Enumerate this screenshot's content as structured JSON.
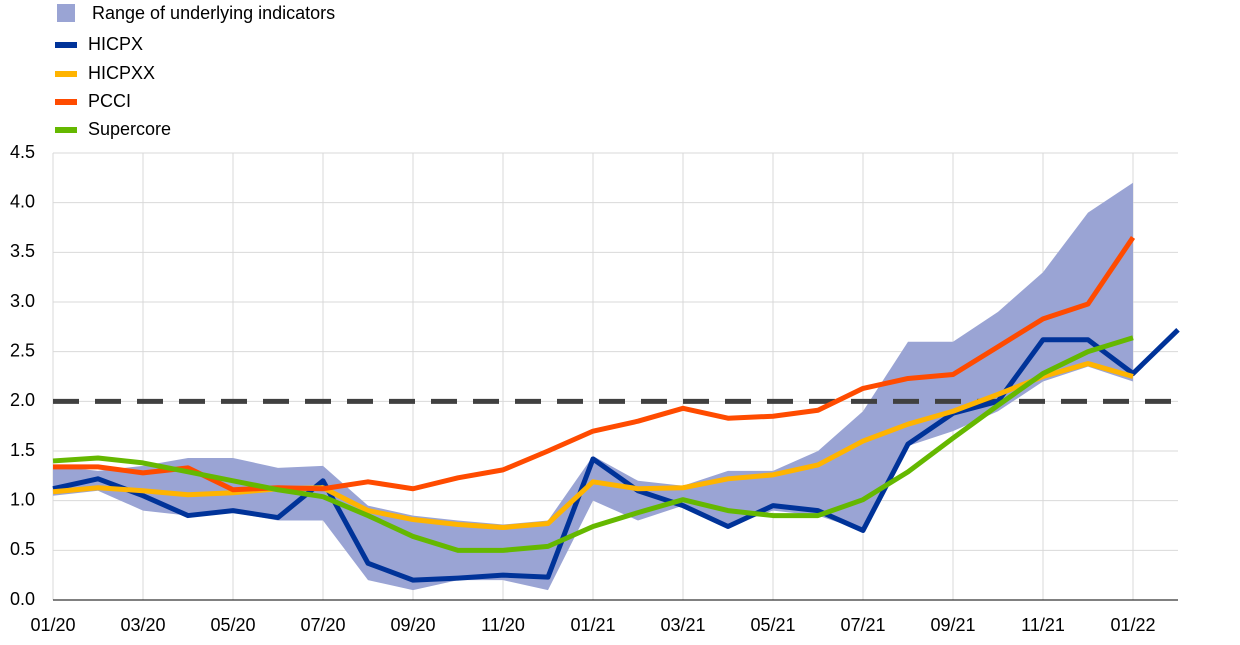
{
  "chart_data": {
    "type": "line",
    "categories": [
      "01/20",
      null,
      "03/20",
      null,
      "05/20",
      null,
      "07/20",
      null,
      "09/20",
      null,
      "11/20",
      null,
      "01/21",
      null,
      "03/21",
      null,
      "05/21",
      null,
      "07/21",
      null,
      "09/21",
      null,
      "11/21",
      null,
      "01/22",
      null
    ],
    "range": {
      "name": "Range of underlying indicators",
      "color": "#9aa4d4",
      "high": [
        1.35,
        1.3,
        1.35,
        1.43,
        1.43,
        1.33,
        1.35,
        0.95,
        0.85,
        0.8,
        0.76,
        0.8,
        1.45,
        1.2,
        1.15,
        1.3,
        1.3,
        1.5,
        1.9,
        2.6,
        2.6,
        2.9,
        3.3,
        3.9,
        4.2,
        null
      ],
      "low": [
        1.05,
        1.1,
        0.9,
        0.85,
        0.88,
        0.8,
        0.8,
        0.2,
        0.1,
        0.2,
        0.2,
        0.1,
        1.0,
        0.8,
        0.95,
        0.74,
        0.9,
        0.85,
        0.7,
        1.55,
        1.7,
        1.9,
        2.2,
        2.35,
        2.2,
        null
      ]
    },
    "series": [
      {
        "name": "HICPX",
        "color": "#003399",
        "values": [
          1.12,
          1.22,
          1.05,
          0.85,
          0.9,
          0.83,
          1.2,
          0.37,
          0.2,
          0.22,
          0.25,
          0.23,
          1.42,
          1.1,
          0.95,
          0.74,
          0.95,
          0.9,
          0.7,
          1.57,
          1.88,
          2.0,
          2.62,
          2.62,
          2.28,
          2.72
        ]
      },
      {
        "name": "HICPXX",
        "color": "#ffb400",
        "values": [
          1.09,
          1.13,
          1.1,
          1.06,
          1.08,
          1.12,
          1.13,
          0.9,
          0.81,
          0.76,
          0.73,
          0.77,
          1.19,
          1.12,
          1.13,
          1.22,
          1.26,
          1.36,
          1.6,
          1.77,
          1.9,
          2.07,
          2.25,
          2.38,
          2.25,
          null
        ]
      },
      {
        "name": "PCCI",
        "color": "#ff4b00",
        "values": [
          1.34,
          1.34,
          1.28,
          1.33,
          1.11,
          1.13,
          1.12,
          1.19,
          1.12,
          1.23,
          1.31,
          1.5,
          1.7,
          1.8,
          1.93,
          1.83,
          1.85,
          1.91,
          2.13,
          2.23,
          2.27,
          2.55,
          2.83,
          2.98,
          3.65,
          null
        ]
      },
      {
        "name": "Supercore",
        "color": "#65b800",
        "values": [
          1.4,
          1.43,
          1.38,
          1.29,
          1.2,
          1.11,
          1.04,
          0.85,
          0.64,
          0.5,
          0.5,
          0.54,
          0.74,
          0.88,
          1.01,
          0.9,
          0.85,
          0.85,
          1.01,
          1.29,
          1.63,
          1.96,
          2.28,
          2.5,
          2.64,
          null
        ]
      }
    ],
    "reference_line": 2,
    "ylim": [
      0,
      4.5
    ],
    "yticks": [
      {
        "value": 0,
        "label": "0.0"
      },
      0.5,
      {
        "value": 1,
        "label": "1.0"
      },
      1.5,
      {
        "value": 2,
        "label": "2.0"
      },
      2.5,
      {
        "value": 3,
        "label": "3.0"
      },
      3.5,
      {
        "value": 4,
        "label": "4.0"
      },
      4.5
    ],
    "grid": true
  }
}
